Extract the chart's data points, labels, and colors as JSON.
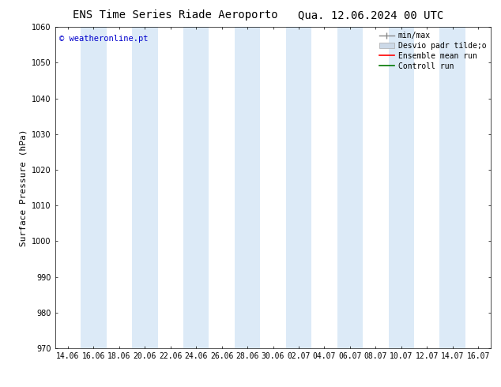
{
  "title_left": "ENS Time Series Riade Aeroporto",
  "title_right": "Qua. 12.06.2024 00 UTC",
  "ylabel": "Surface Pressure (hPa)",
  "watermark": "© weatheronline.pt",
  "watermark_color": "#0000cc",
  "ylim": [
    970,
    1060
  ],
  "yticks": [
    970,
    980,
    990,
    1000,
    1010,
    1020,
    1030,
    1040,
    1050,
    1060
  ],
  "xtick_labels": [
    "14.06",
    "16.06",
    "18.06",
    "20.06",
    "22.06",
    "24.06",
    "26.06",
    "28.06",
    "30.06",
    "02.07",
    "04.07",
    "06.07",
    "08.07",
    "10.07",
    "12.07",
    "14.07",
    "16.07"
  ],
  "bg_color": "#ffffff",
  "plot_bg_color": "#ffffff",
  "band_color": "#dceaf7",
  "band_positions": [
    1,
    3,
    5,
    7,
    9,
    11,
    13,
    15
  ],
  "legend_entries": [
    {
      "label": "min/max",
      "color": "#aaaaaa",
      "style": "minmax"
    },
    {
      "label": "Desvio padr tilde;o",
      "color": "#ccddee",
      "style": "fill"
    },
    {
      "label": "Ensemble mean run",
      "color": "#ff0000",
      "style": "line"
    },
    {
      "label": "Controll run",
      "color": "#007700",
      "style": "line"
    }
  ],
  "title_fontsize": 10,
  "axis_fontsize": 8,
  "tick_fontsize": 7,
  "legend_fontsize": 7
}
